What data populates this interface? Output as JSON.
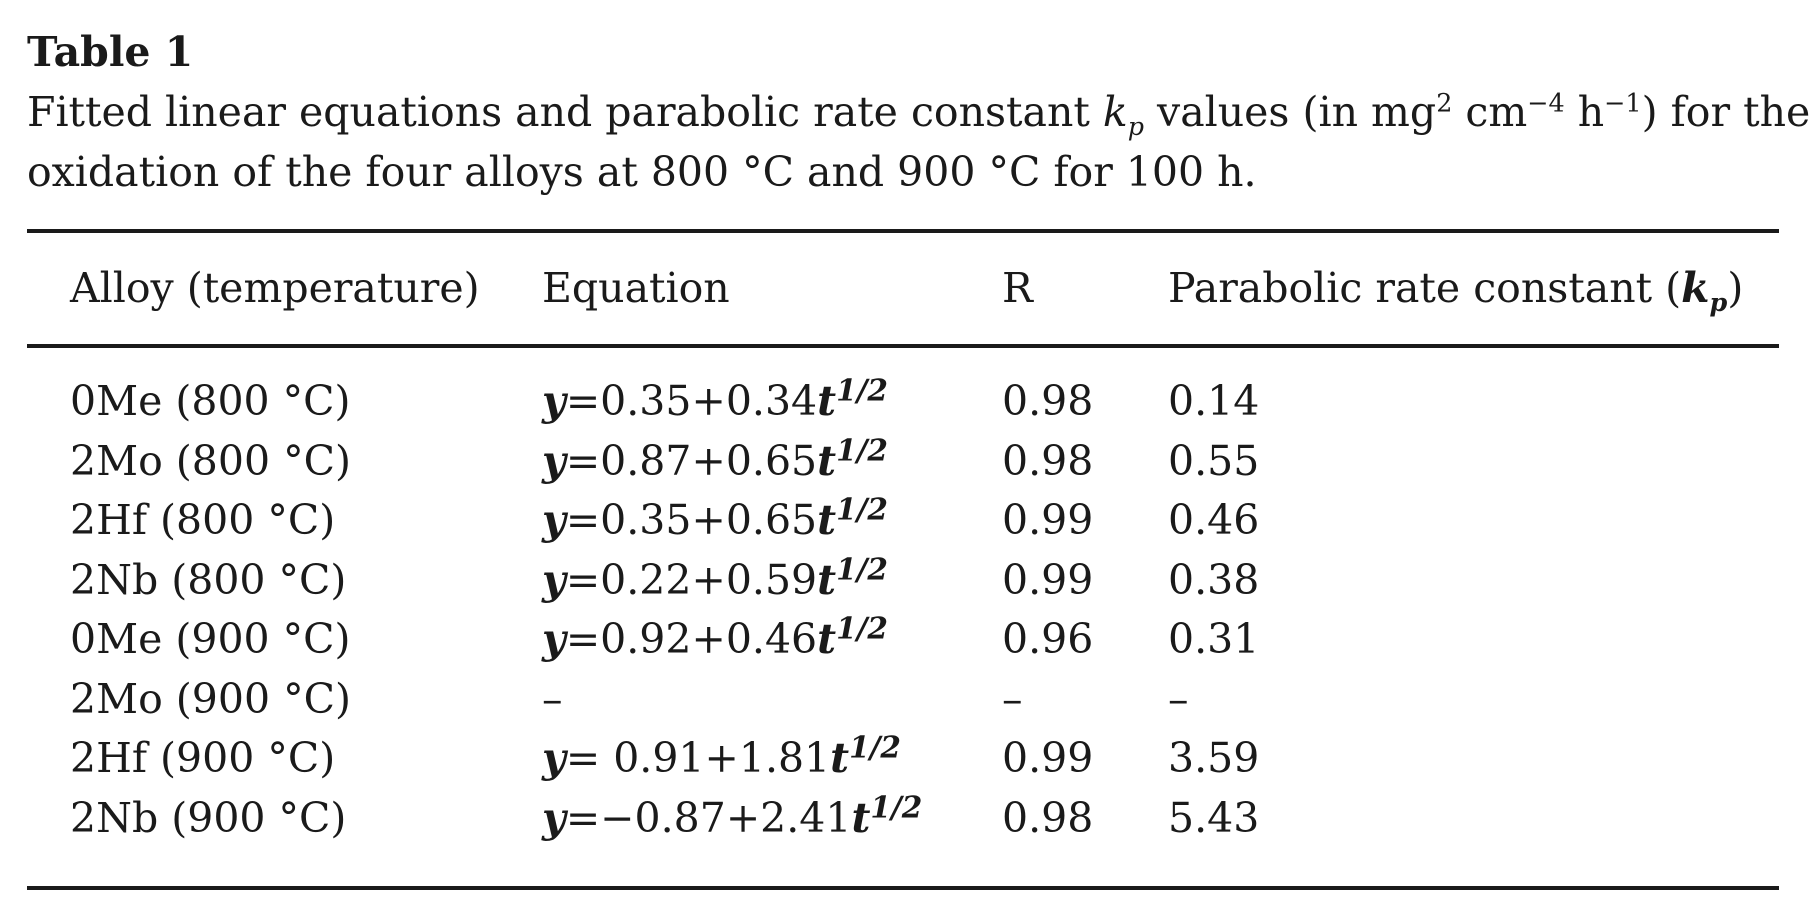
{
  "table": {
    "label": "Table 1",
    "caption": {
      "part1": "Fitted linear equations and parabolic rate constant ",
      "kp_var": "k",
      "kp_sub": "p",
      "part2": " values (in mg",
      "exp1": "2",
      "part3": " cm",
      "exp2": "−4",
      "part4": " h",
      "exp3": "−1",
      "part5": ") for the",
      "line2": "oxidation of the four alloys at 800 °C and 900 °C for 100 h."
    },
    "headers": {
      "alloy": "Alloy (temperature)",
      "equation": "Equation",
      "r": "R",
      "kp_prefix": "Parabolic rate constant (",
      "kp_var": "k",
      "kp_sub": "p",
      "kp_suffix": ")"
    },
    "rows": [
      {
        "alloy": "0Me (800 °C)",
        "eq_y": "y",
        "eq_body": "=0.35+0.34",
        "eq_t": "t",
        "eq_exp": "1/2",
        "r": "0.98",
        "kp": "0.14"
      },
      {
        "alloy": "2Mo (800 °C)",
        "eq_y": "y",
        "eq_body": "=0.87+0.65",
        "eq_t": "t",
        "eq_exp": "1/2",
        "r": "0.98",
        "kp": "0.55"
      },
      {
        "alloy": "2Hf (800 °C)",
        "eq_y": "y",
        "eq_body": "=0.35+0.65",
        "eq_t": "t",
        "eq_exp": "1/2",
        "r": "0.99",
        "kp": "0.46"
      },
      {
        "alloy": "2Nb (800 °C)",
        "eq_y": "y",
        "eq_body": "=0.22+0.59",
        "eq_t": "t",
        "eq_exp": "1/2",
        "r": "0.99",
        "kp": "0.38"
      },
      {
        "alloy": "0Me (900 °C)",
        "eq_y": "y",
        "eq_body": "=0.92+0.46",
        "eq_t": "t",
        "eq_exp": "1/2",
        "r": "0.96",
        "kp": "0.31"
      },
      {
        "alloy": "2Mo (900 °C)",
        "eq_y": "",
        "eq_body": "–",
        "eq_t": "",
        "eq_exp": "",
        "r": "–",
        "kp": "–"
      },
      {
        "alloy": "2Hf (900 °C)",
        "eq_y": "y",
        "eq_body": "= 0.91+1.81",
        "eq_t": "t",
        "eq_exp": "1/2",
        "r": "0.99",
        "kp": "3.59"
      },
      {
        "alloy": "2Nb (900 °C)",
        "eq_y": "y",
        "eq_body": "=−0.87+2.41",
        "eq_t": "t",
        "eq_exp": "1/2",
        "r": "0.98",
        "kp": "5.43"
      }
    ]
  }
}
